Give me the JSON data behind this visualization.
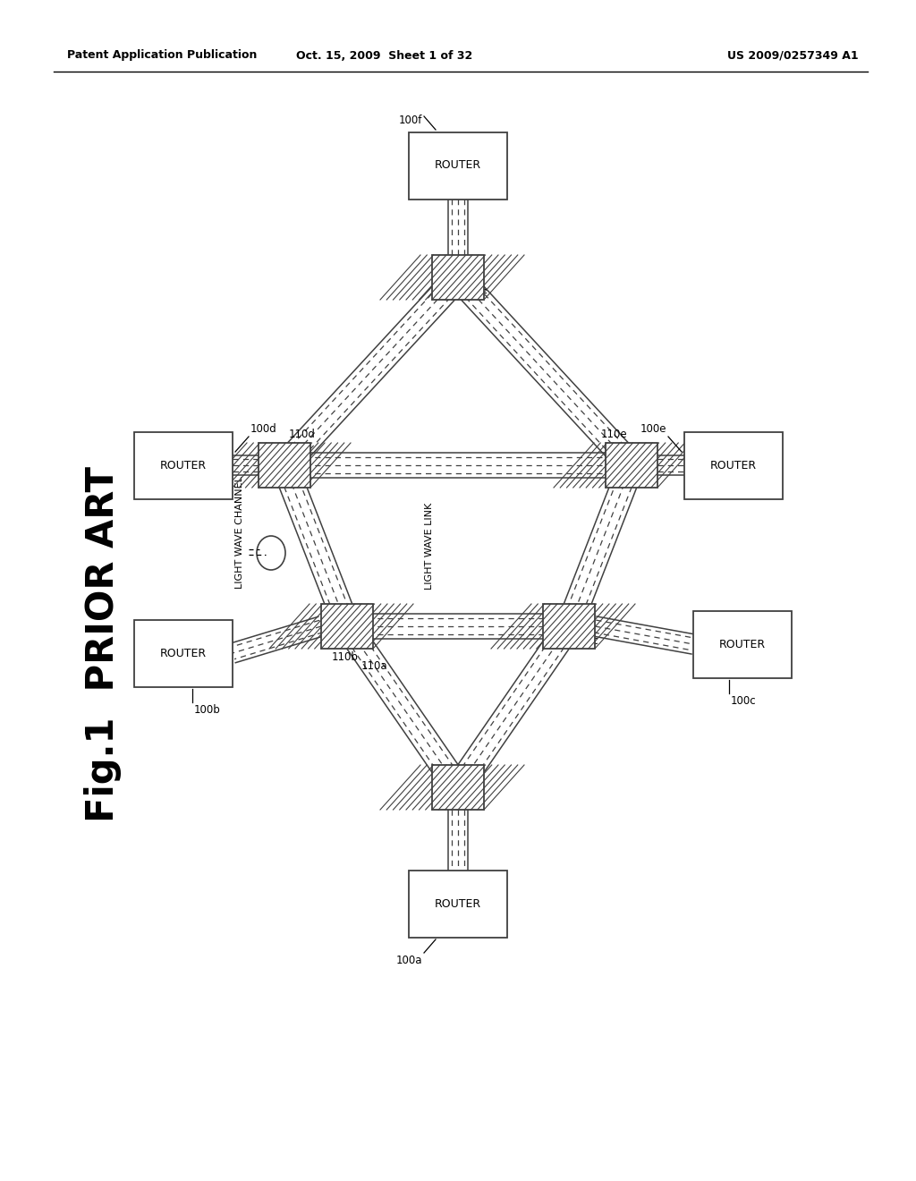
{
  "bg_color": "#ffffff",
  "header_left": "Patent Application Publication",
  "header_mid": "Oct. 15, 2009  Sheet 1 of 32",
  "header_right": "US 2009/0257349 A1",
  "line_color": "#404040",
  "fig_title_1": "Fig.1",
  "fig_title_2": "PRIOR ART"
}
